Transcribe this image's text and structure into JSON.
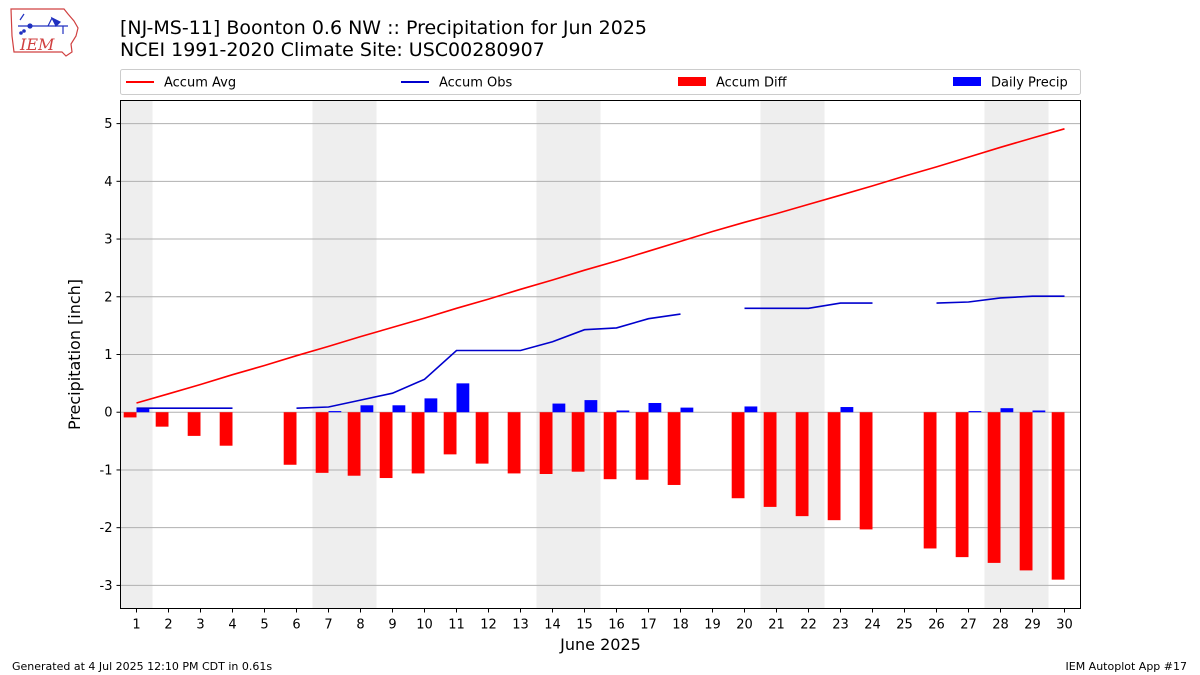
{
  "header": {
    "title_line1": "[NJ-MS-11] Boonton 0.6 NW :: Precipitation for Jun 2025",
    "title_line2": "NCEI 1991-2020 Climate Site: USC00280907"
  },
  "logo": {
    "text": "IEM",
    "icon": "iowa-state-map-weather-icon"
  },
  "footer": {
    "generated": "Generated at 4 Jul 2025 12:10 PM CDT in 0.61s",
    "app": "IEM Autoplot App #17"
  },
  "colors": {
    "accum_avg": "#ff0000",
    "accum_obs": "#0000cd",
    "accum_diff": "#ff0000",
    "daily_precip": "#0000ff",
    "weekend_shade": "#eeeeee",
    "grid": "#b0b0b0"
  },
  "chart_data": {
    "type": "bar",
    "xlabel": "June 2025",
    "ylabel": "Precipitation [inch]",
    "ylim": [
      -3.4,
      5.4
    ],
    "yticks": [
      -3,
      -2,
      -1,
      0,
      1,
      2,
      3,
      4,
      5
    ],
    "grid": "horizontal",
    "legend_placement": "top",
    "weekend_days": [
      1,
      7,
      8,
      14,
      15,
      21,
      22,
      28,
      29
    ],
    "days": [
      1,
      2,
      3,
      4,
      5,
      6,
      7,
      8,
      9,
      10,
      11,
      12,
      13,
      14,
      15,
      16,
      17,
      18,
      19,
      20,
      21,
      22,
      23,
      24,
      25,
      26,
      27,
      28,
      29,
      30
    ],
    "series": [
      {
        "name": "Accum Avg",
        "kind": "line",
        "values": [
          0.16,
          0.32,
          0.48,
          0.65,
          0.81,
          0.98,
          1.14,
          1.31,
          1.47,
          1.63,
          1.8,
          1.96,
          2.13,
          2.29,
          2.46,
          2.62,
          2.79,
          2.96,
          3.13,
          3.29,
          3.44,
          3.6,
          3.76,
          3.92,
          4.09,
          4.25,
          4.42,
          4.59,
          4.75,
          4.91
        ]
      },
      {
        "name": "Accum Obs",
        "kind": "line",
        "values": [
          0.07,
          0.07,
          0.07,
          0.07,
          null,
          0.07,
          0.09,
          0.21,
          0.33,
          0.57,
          1.07,
          1.07,
          1.07,
          1.22,
          1.43,
          1.46,
          1.62,
          1.7,
          null,
          1.8,
          1.8,
          1.8,
          1.89,
          1.89,
          null,
          1.89,
          1.91,
          1.98,
          2.01,
          2.01
        ]
      },
      {
        "name": "Accum Diff",
        "kind": "bar",
        "values": [
          -0.09,
          -0.25,
          -0.41,
          -0.58,
          null,
          -0.91,
          -1.05,
          -1.1,
          -1.14,
          -1.06,
          -0.73,
          -0.89,
          -1.06,
          -1.07,
          -1.03,
          -1.16,
          -1.17,
          -1.26,
          null,
          -1.49,
          -1.64,
          -1.8,
          -1.87,
          -2.03,
          null,
          -2.36,
          -2.51,
          -2.61,
          -2.74,
          -2.9
        ]
      },
      {
        "name": "Daily Precip",
        "kind": "bar",
        "values": [
          0.07,
          0,
          0,
          0,
          null,
          0,
          0.02,
          0.12,
          0.12,
          0.24,
          0.5,
          0,
          0,
          0.15,
          0.21,
          0.03,
          0.16,
          0.08,
          null,
          0.1,
          0,
          0,
          0.09,
          0,
          null,
          0,
          0.02,
          0.07,
          0.03,
          0
        ]
      }
    ]
  }
}
